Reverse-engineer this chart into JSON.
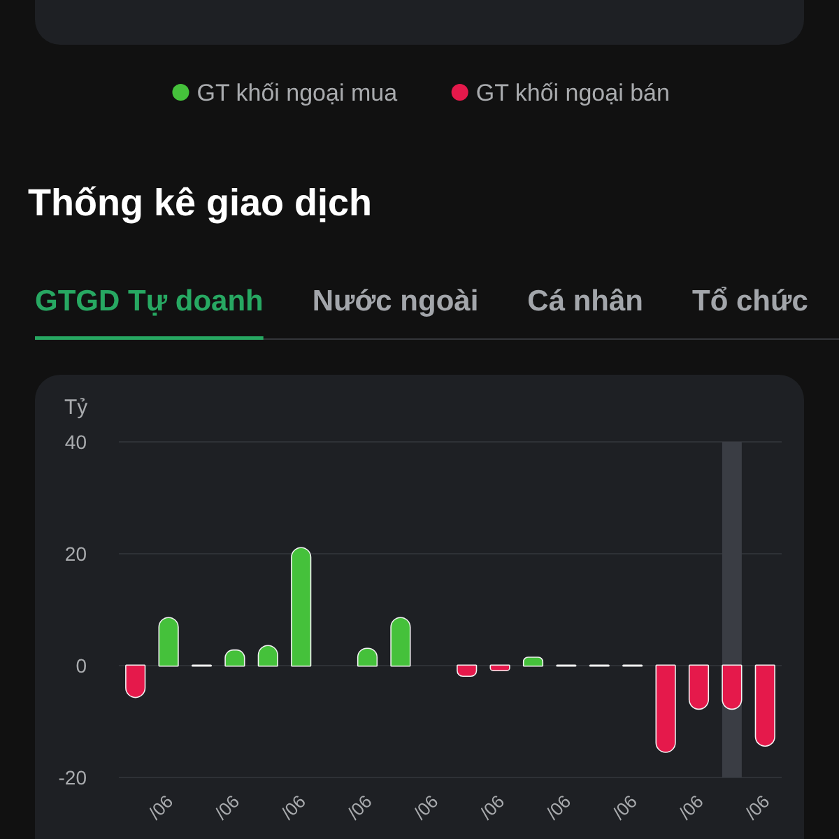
{
  "chart_data": {
    "type": "bar",
    "title": "Thống kê giao dịch",
    "ylabel": "Tỷ",
    "annotations": [
      "GTGD Tự doanh",
      "Nước ngoài",
      "Cá nhân",
      "Tổ chức"
    ],
    "categories": [
      null,
      "/06",
      null,
      "/06",
      null,
      "/06",
      null,
      "/06",
      null,
      "/06",
      null,
      "/06",
      null,
      "/06",
      null,
      "/06",
      null,
      "/06",
      null,
      "/06"
    ],
    "series": [
      {
        "name": "GT khối ngoại mua",
        "color": "#45c13b",
        "values": [
          null,
          8.5,
          0,
          2.7,
          3.5,
          21,
          null,
          3,
          8.5,
          null,
          null,
          null,
          1.4,
          0,
          0,
          0,
          null,
          null,
          null,
          null
        ],
        "colors": [
          null,
          "#45c13b",
          "#f2f2f2",
          "#45c13b",
          "#45c13b",
          "#45c13b",
          null,
          "#45c13b",
          "#45c13b",
          null,
          null,
          null,
          "#45c13b",
          "#f2f2f2",
          "#f2f2f2",
          "#f2f2f2",
          null,
          null,
          null,
          null
        ]
      },
      {
        "name": "GT khối ngoại bán",
        "color": "#e5194b",
        "values": [
          -5.6,
          null,
          null,
          null,
          null,
          null,
          null,
          null,
          null,
          null,
          -1.8,
          -0.8,
          null,
          null,
          null,
          null,
          -15.4,
          -7.7,
          -7.7,
          -14.3
        ]
      }
    ],
    "stacked": true,
    "ylim": [
      -20,
      40
    ],
    "yticks": [
      -20,
      0,
      20,
      40
    ],
    "grid": "y",
    "legend": "top"
  }
}
